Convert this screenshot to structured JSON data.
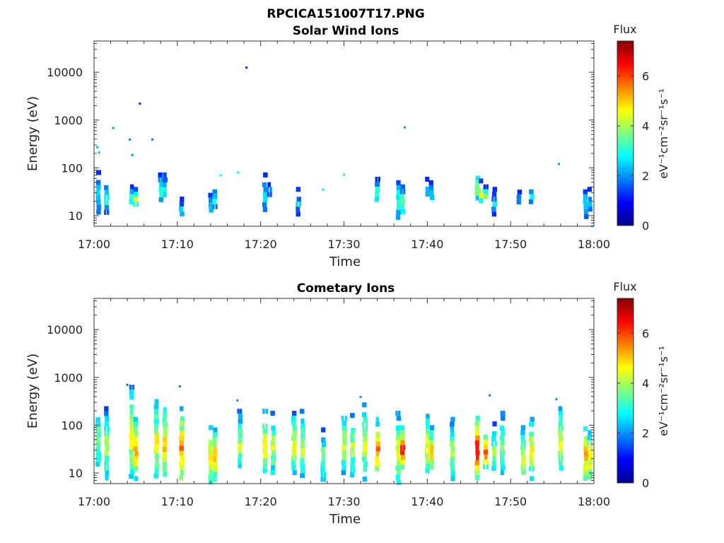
{
  "figure": {
    "title": "RPCICA151007T17.PNG"
  },
  "colorbar": {
    "label": "Flux",
    "units": "eV⁻¹cm⁻²sr⁻¹s⁻¹",
    "ticks": [
      "0",
      "2",
      "4",
      "6"
    ],
    "range": [
      0,
      7.4
    ],
    "colormap": "jet"
  },
  "chart_data": [
    {
      "type": "heatmap",
      "title": "Solar Wind Ions",
      "xlabel": "Time",
      "ylabel": "Energy (eV)",
      "xticks": [
        "17:00",
        "17:10",
        "17:20",
        "17:30",
        "17:40",
        "17:50",
        "18:00"
      ],
      "yticks": [
        "10",
        "100",
        "1000",
        "10000"
      ],
      "xlim": [
        "17:00",
        "18:00"
      ],
      "ylim": [
        6,
        45000
      ],
      "yscale": "log",
      "zlim": [
        0,
        7.4
      ],
      "zlabel": "Flux",
      "bursts": [
        {
          "t": 0.5,
          "emin": 12,
          "emax": 90,
          "flux": 2.6
        },
        {
          "t": 1.5,
          "emin": 12,
          "emax": 55,
          "flux": 3.0
        },
        {
          "t": 4.5,
          "emin": 18,
          "emax": 45,
          "flux": 3.6
        },
        {
          "t": 5.0,
          "emin": 18,
          "emax": 40,
          "flux": 4.6
        },
        {
          "t": 8.0,
          "emin": 18,
          "emax": 80,
          "flux": 3.2
        },
        {
          "t": 8.5,
          "emin": 25,
          "emax": 80,
          "flux": 3.0
        },
        {
          "t": 10.5,
          "emin": 12,
          "emax": 25,
          "flux": 2.8
        },
        {
          "t": 14.0,
          "emin": 12,
          "emax": 30,
          "flux": 3.0
        },
        {
          "t": 14.5,
          "emin": 15,
          "emax": 45,
          "flux": 3.1
        },
        {
          "t": 20.5,
          "emin": 12,
          "emax": 80,
          "flux": 2.6
        },
        {
          "t": 21.0,
          "emin": 30,
          "emax": 50,
          "flux": 2.5
        },
        {
          "t": 24.5,
          "emin": 12,
          "emax": 40,
          "flux": 2.5
        },
        {
          "t": 34.0,
          "emin": 20,
          "emax": 65,
          "flux": 3.3
        },
        {
          "t": 36.5,
          "emin": 10,
          "emax": 70,
          "flux": 3.2
        },
        {
          "t": 37.0,
          "emin": 12,
          "emax": 45,
          "flux": 3.9
        },
        {
          "t": 40.0,
          "emin": 25,
          "emax": 65,
          "flux": 2.6
        },
        {
          "t": 40.5,
          "emin": 25,
          "emax": 55,
          "flux": 2.8
        },
        {
          "t": 46.0,
          "emin": 20,
          "emax": 110,
          "flux": 4.0
        },
        {
          "t": 46.5,
          "emin": 20,
          "emax": 60,
          "flux": 4.6
        },
        {
          "t": 47.0,
          "emin": 25,
          "emax": 45,
          "flux": 4.3
        },
        {
          "t": 48.0,
          "emin": 12,
          "emax": 40,
          "flux": 2.6
        },
        {
          "t": 51.0,
          "emin": 20,
          "emax": 35,
          "flux": 2.7
        },
        {
          "t": 52.5,
          "emin": 20,
          "emax": 45,
          "flux": 2.9
        },
        {
          "t": 59.0,
          "emin": 10,
          "emax": 45,
          "flux": 3.0
        },
        {
          "t": 59.5,
          "emin": 12,
          "emax": 40,
          "flux": 2.8
        }
      ],
      "pixels": [
        {
          "t": 2.3,
          "e": 680,
          "flux": 2.0
        },
        {
          "t": 4.3,
          "e": 390,
          "flux": 1.8
        },
        {
          "t": 4.6,
          "e": 185,
          "flux": 2.0
        },
        {
          "t": 5.5,
          "e": 2200,
          "flux": 1.2
        },
        {
          "t": 7.0,
          "e": 390,
          "flux": 1.8
        },
        {
          "t": 18.3,
          "e": 12500,
          "flux": 1.2
        },
        {
          "t": 37.3,
          "e": 700,
          "flux": 2.0
        },
        {
          "t": 55.8,
          "e": 120,
          "flux": 2.0
        },
        {
          "t": 0.4,
          "e": 270,
          "flux": 2.2
        },
        {
          "t": 0.6,
          "e": 210,
          "flux": 2.3
        },
        {
          "t": 30.0,
          "e": 72,
          "flux": 2.6
        },
        {
          "t": 27.5,
          "e": 35,
          "flux": 2.6
        },
        {
          "t": 17.3,
          "e": 80,
          "flux": 2.7
        },
        {
          "t": 15.2,
          "e": 70,
          "flux": 2.8
        },
        {
          "t": 59.8,
          "e": 6,
          "flux": 2.4
        }
      ]
    },
    {
      "type": "heatmap",
      "title": "Cometary Ions",
      "xlabel": "Time",
      "ylabel": "Energy (eV)",
      "xticks": [
        "17:00",
        "17:10",
        "17:20",
        "17:30",
        "17:40",
        "17:50",
        "18:00"
      ],
      "yticks": [
        "10",
        "100",
        "1000",
        "10000"
      ],
      "xlim": [
        "17:00",
        "18:00"
      ],
      "ylim": [
        6,
        45000
      ],
      "yscale": "log",
      "zlim": [
        0,
        7.4
      ],
      "zlabel": "Flux",
      "bursts": [
        {
          "t": 0.5,
          "emin": 12,
          "emax": 300,
          "flux": 4.0
        },
        {
          "t": 1.5,
          "emin": 8,
          "emax": 250,
          "flux": 4.2
        },
        {
          "t": 4.5,
          "emin": 8,
          "emax": 700,
          "flux": 4.8
        },
        {
          "t": 5.0,
          "emin": 8,
          "emax": 150,
          "flux": 5.6
        },
        {
          "t": 7.5,
          "emin": 8,
          "emax": 350,
          "flux": 4.8
        },
        {
          "t": 8.5,
          "emin": 8,
          "emax": 300,
          "flux": 5.2
        },
        {
          "t": 10.5,
          "emin": 6,
          "emax": 250,
          "flux": 5.6
        },
        {
          "t": 14.0,
          "emin": 6,
          "emax": 100,
          "flux": 5.2
        },
        {
          "t": 14.5,
          "emin": 8,
          "emax": 90,
          "flux": 5.4
        },
        {
          "t": 17.5,
          "emin": 10,
          "emax": 220,
          "flux": 4.2
        },
        {
          "t": 20.5,
          "emin": 8,
          "emax": 220,
          "flux": 5.0
        },
        {
          "t": 21.5,
          "emin": 10,
          "emax": 200,
          "flux": 4.4
        },
        {
          "t": 24.0,
          "emin": 10,
          "emax": 200,
          "flux": 4.6
        },
        {
          "t": 25.0,
          "emin": 8,
          "emax": 220,
          "flux": 4.2
        },
        {
          "t": 27.5,
          "emin": 8,
          "emax": 90,
          "flux": 4.0
        },
        {
          "t": 30.0,
          "emin": 10,
          "emax": 200,
          "flux": 4.4
        },
        {
          "t": 31.0,
          "emin": 10,
          "emax": 180,
          "flux": 4.2
        },
        {
          "t": 32.5,
          "emin": 8,
          "emax": 300,
          "flux": 4.6
        },
        {
          "t": 34.0,
          "emin": 10,
          "emax": 150,
          "flux": 5.8
        },
        {
          "t": 36.5,
          "emin": 6,
          "emax": 200,
          "flux": 4.8
        },
        {
          "t": 37.0,
          "emin": 14,
          "emax": 100,
          "flux": 6.4
        },
        {
          "t": 40.0,
          "emin": 8,
          "emax": 220,
          "flux": 4.8
        },
        {
          "t": 40.5,
          "emin": 12,
          "emax": 100,
          "flux": 5.2
        },
        {
          "t": 43.0,
          "emin": 8,
          "emax": 150,
          "flux": 4.4
        },
        {
          "t": 46.0,
          "emin": 8,
          "emax": 200,
          "flux": 6.8
        },
        {
          "t": 47.0,
          "emin": 14,
          "emax": 80,
          "flux": 6.2
        },
        {
          "t": 48.0,
          "emin": 10,
          "emax": 120,
          "flux": 4.2
        },
        {
          "t": 49.0,
          "emin": 10,
          "emax": 200,
          "flux": 4.0
        },
        {
          "t": 51.5,
          "emin": 8,
          "emax": 100,
          "flux": 4.6
        },
        {
          "t": 52.5,
          "emin": 8,
          "emax": 150,
          "flux": 4.8
        },
        {
          "t": 56.0,
          "emin": 10,
          "emax": 250,
          "flux": 4.8
        },
        {
          "t": 59.0,
          "emin": 8,
          "emax": 120,
          "flux": 5.6
        },
        {
          "t": 59.5,
          "emin": 6,
          "emax": 100,
          "flux": 4.8
        }
      ],
      "pixels": [
        {
          "t": 4.0,
          "e": 700,
          "flux": 1.6
        },
        {
          "t": 10.3,
          "e": 650,
          "flux": 1.8
        },
        {
          "t": 17.2,
          "e": 330,
          "flux": 2.0
        },
        {
          "t": 32.0,
          "e": 390,
          "flux": 2.0
        },
        {
          "t": 47.5,
          "e": 420,
          "flux": 1.8
        },
        {
          "t": 55.5,
          "e": 350,
          "flux": 2.0
        }
      ]
    }
  ]
}
